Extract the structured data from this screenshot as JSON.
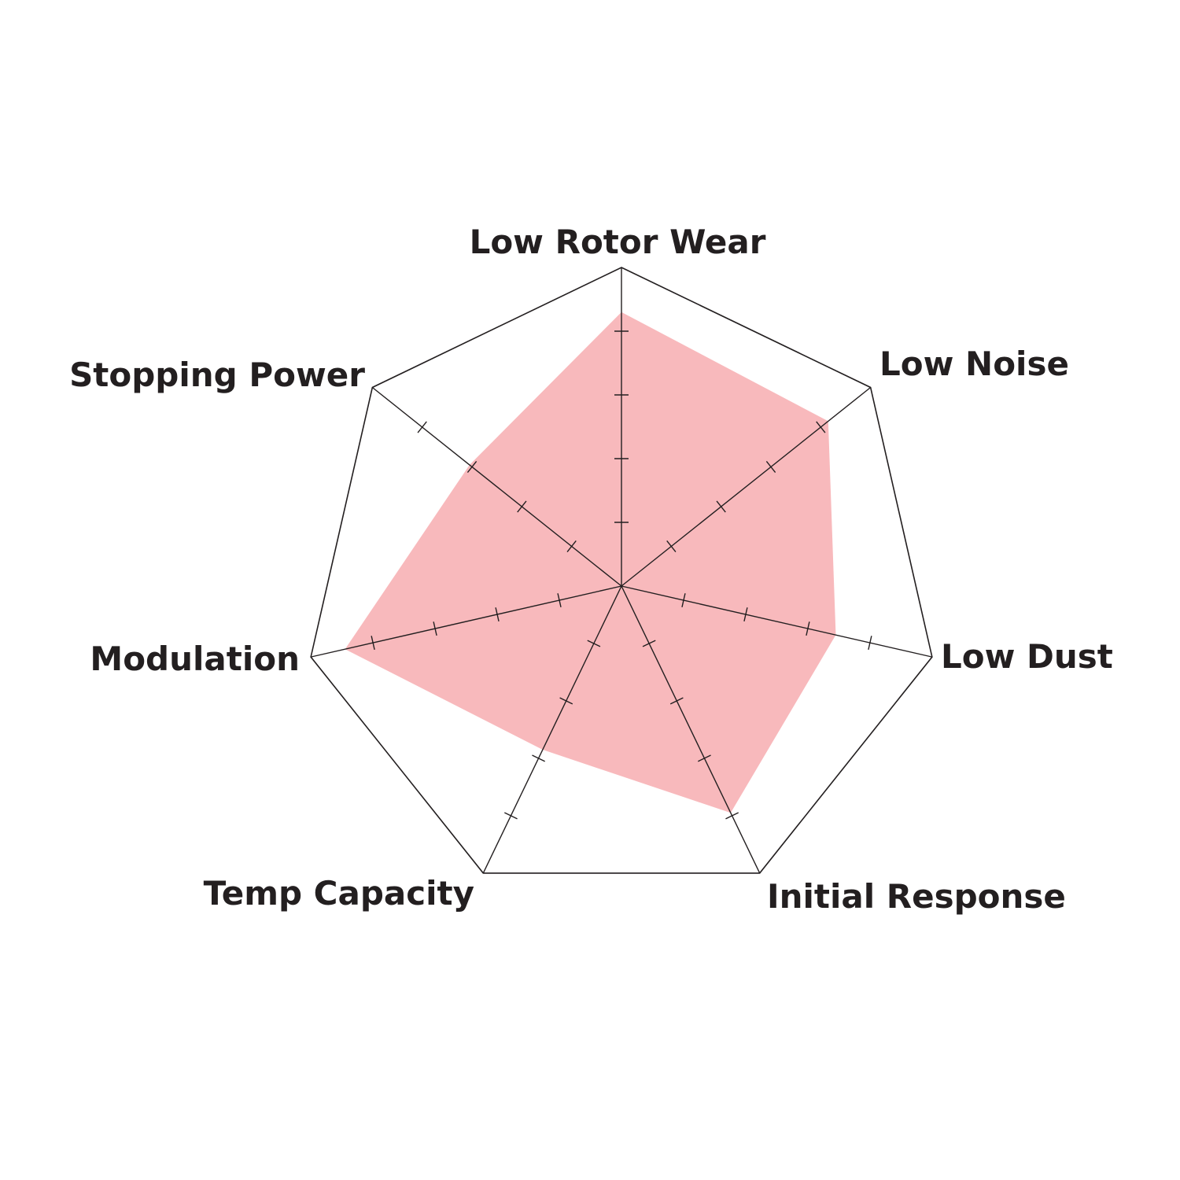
{
  "chart_data": {
    "type": "radar",
    "title": "",
    "axes": [
      "Low Rotor Wear",
      "Low Noise",
      "Low Dust",
      "Initial Response",
      "Temp Capacity",
      "Modulation",
      "Stopping Power"
    ],
    "scale": {
      "min": 0,
      "max": 5,
      "ticks": [
        1,
        2,
        3,
        4
      ]
    },
    "series": [
      {
        "values": [
          4.3,
          4.15,
          3.45,
          3.95,
          2.85,
          4.45,
          3.05
        ],
        "color": "#f8b9bc"
      }
    ],
    "grid_color": "#231f20",
    "legend": "none"
  }
}
